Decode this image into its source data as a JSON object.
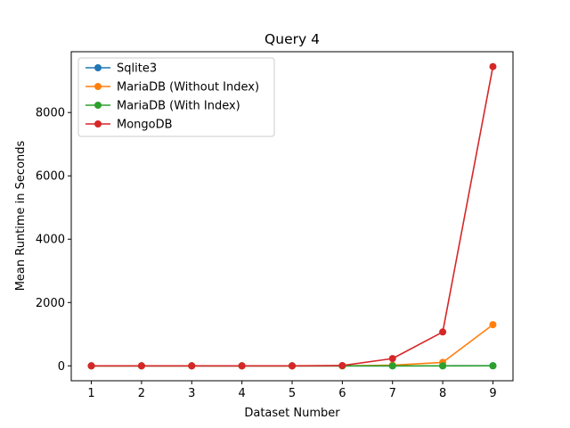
{
  "chart_data": {
    "type": "line",
    "title": "Query 4",
    "xlabel": "Dataset Number",
    "ylabel": "Mean Runtime in Seconds",
    "x": [
      1,
      2,
      3,
      4,
      5,
      6,
      7,
      8,
      9
    ],
    "xticks": [
      "1",
      "2",
      "3",
      "4",
      "5",
      "6",
      "7",
      "8",
      "9"
    ],
    "yticks": [
      "0",
      "2000",
      "4000",
      "6000",
      "8000"
    ],
    "ytick_values": [
      0,
      2000,
      4000,
      6000,
      8000
    ],
    "xlim": [
      0.6,
      9.4
    ],
    "ylim": [
      -470,
      9920
    ],
    "grid": false,
    "legend_position": "top-left",
    "series": [
      {
        "name": "Sqlite3",
        "color": "#1f77b4",
        "values": [
          0,
          0,
          0,
          0,
          0,
          0,
          1,
          2,
          5
        ]
      },
      {
        "name": "MariaDB (Without Index)",
        "color": "#ff7f0e",
        "values": [
          0,
          0,
          0,
          0,
          0,
          1,
          20,
          110,
          1300
        ]
      },
      {
        "name": "MariaDB (With Index)",
        "color": "#2ca02c",
        "values": [
          0,
          0,
          0,
          0,
          0,
          0,
          0,
          1,
          2
        ]
      },
      {
        "name": "MongoDB",
        "color": "#d62728",
        "values": [
          0,
          0,
          0,
          0,
          1,
          10,
          230,
          1070,
          9450
        ]
      }
    ]
  }
}
